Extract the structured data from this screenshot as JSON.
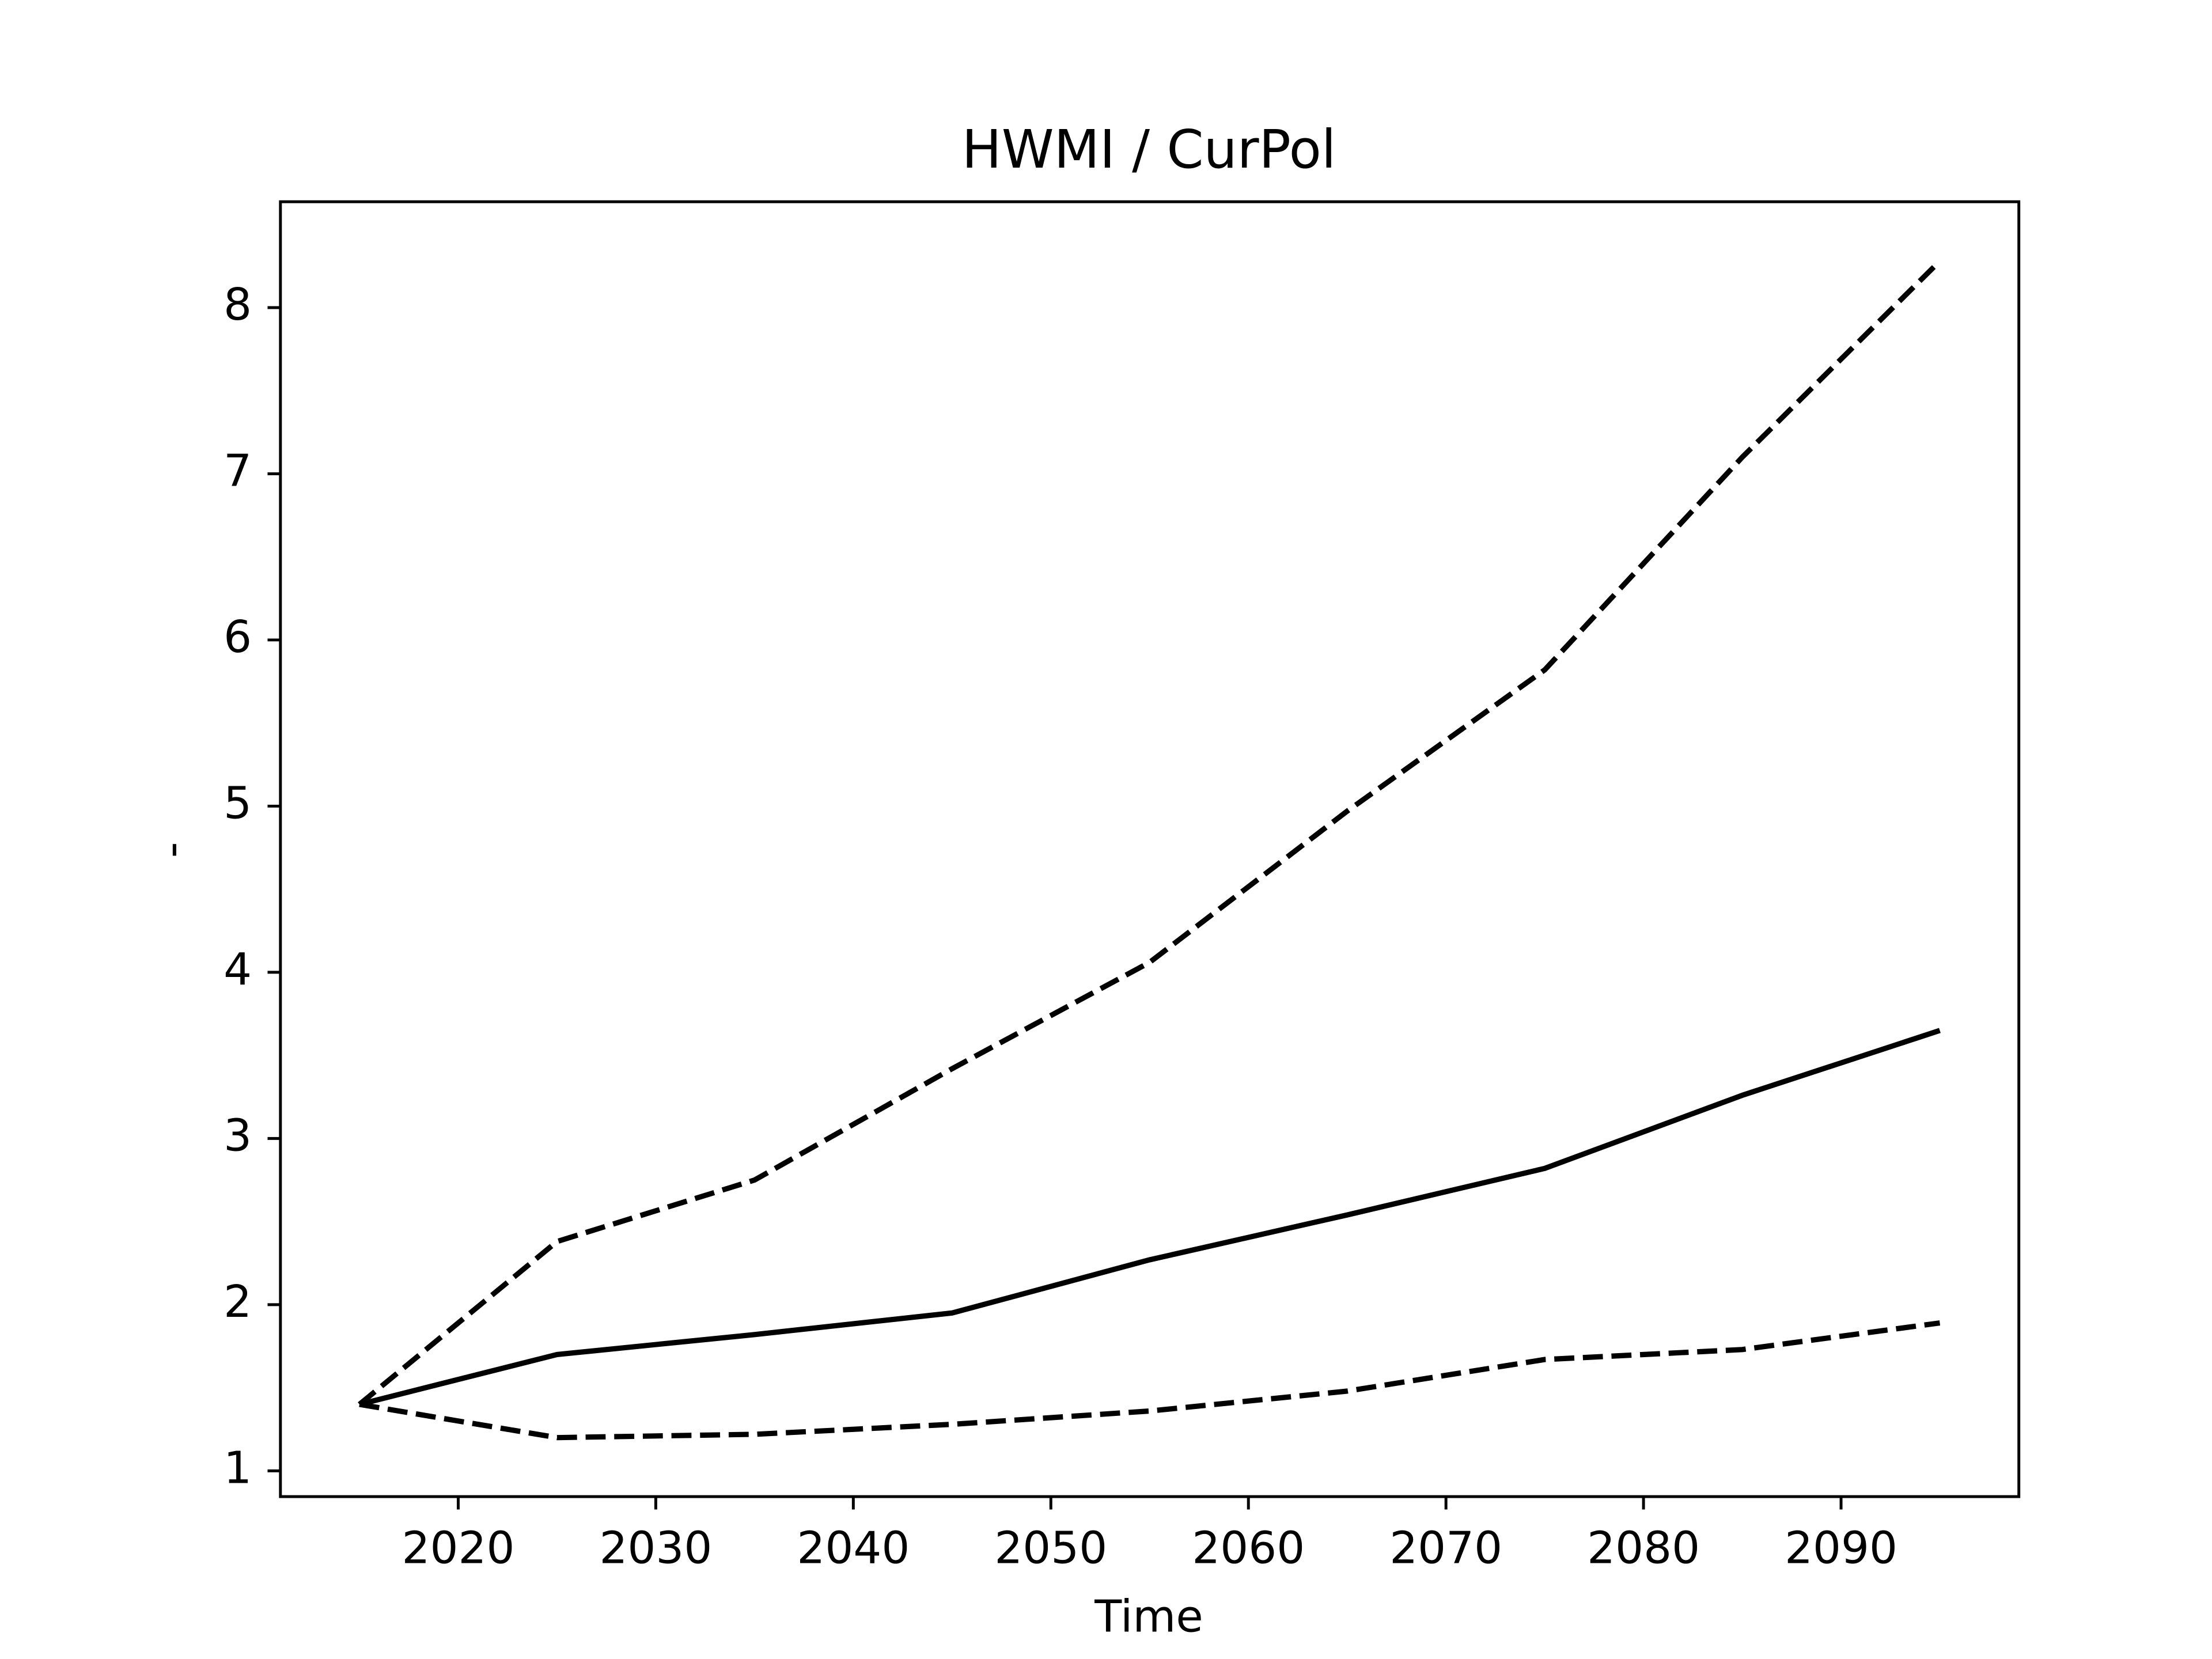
{
  "chart_data": {
    "type": "line",
    "title": "HWMI / CurPol",
    "xlabel": "Time",
    "ylabel": "-",
    "x": [
      2015,
      2025,
      2035,
      2045,
      2055,
      2065,
      2075,
      2085,
      2095
    ],
    "series": [
      {
        "color": "#000000",
        "dashed": false,
        "values": [
          1.4,
          1.7,
          1.82,
          1.95,
          2.27,
          2.54,
          2.82,
          3.26,
          3.65
        ]
      },
      {
        "color": "#000000",
        "dashed": true,
        "values": [
          1.4,
          2.38,
          2.75,
          3.42,
          4.06,
          4.97,
          5.82,
          7.1,
          8.28
        ]
      },
      {
        "color": "#000000",
        "dashed": true,
        "values": [
          1.4,
          1.2,
          1.22,
          1.28,
          1.36,
          1.48,
          1.67,
          1.73,
          1.89
        ]
      }
    ],
    "xlim": [
      2011,
      2099
    ],
    "ylim": [
      0.845,
      8.637
    ],
    "xticks": [
      2020,
      2030,
      2040,
      2050,
      2060,
      2070,
      2080,
      2090
    ],
    "yticks": [
      1,
      2,
      3,
      4,
      5,
      6,
      7,
      8
    ],
    "grid": false
  }
}
